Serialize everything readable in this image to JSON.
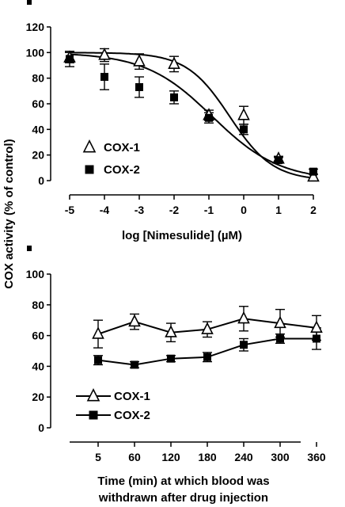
{
  "shared_ylabel": "COX activity (% of control)",
  "chart_data": [
    {
      "type": "line",
      "xlabel": "log [Nimesulide] (µM)",
      "x": [
        -5,
        -4,
        -3,
        -2,
        -1,
        0,
        1,
        2
      ],
      "xlim": [
        -5,
        2
      ],
      "ylim": [
        0,
        120
      ],
      "yticks": [
        0,
        20,
        40,
        60,
        80,
        100,
        120
      ],
      "xticks": [
        -5,
        -4,
        -3,
        -2,
        -1,
        0,
        1,
        2
      ],
      "legend_position": "lower-left",
      "series": [
        {
          "name": "COX-1",
          "marker": "open-triangle",
          "values": [
            96,
            98,
            93,
            91,
            51,
            51,
            17,
            3
          ],
          "errors": [
            4,
            5,
            6,
            6,
            4,
            7,
            2,
            2
          ]
        },
        {
          "name": "COX-2",
          "marker": "filled-square",
          "values": [
            95,
            81,
            73,
            65,
            49,
            40,
            16,
            7
          ],
          "errors": [
            6,
            10,
            8,
            5,
            4,
            4,
            2,
            2
          ]
        }
      ],
      "fit_curves": [
        {
          "series": "COX-1",
          "top": 100,
          "bottom": 0,
          "log_ic50": -0.4,
          "hill": 0.7
        },
        {
          "series": "COX-2",
          "top": 100,
          "bottom": 0,
          "log_ic50": -0.9,
          "hill": 0.45
        }
      ]
    },
    {
      "type": "line",
      "xlabel": "Time (min) at which blood was withdrawn after drug injection",
      "xlabel_lines": [
        "Time (min) at which blood was",
        "withdrawn after drug injection"
      ],
      "categories": [
        "5",
        "60",
        "120",
        "180",
        "240",
        "300",
        "360"
      ],
      "ylim": [
        0,
        100
      ],
      "yticks": [
        0,
        20,
        40,
        60,
        80,
        100
      ],
      "legend_position": "lower-left",
      "series": [
        {
          "name": "COX-1",
          "marker": "open-triangle",
          "values": [
            61,
            69,
            62,
            64,
            71,
            68,
            65
          ],
          "errors": [
            9,
            5,
            6,
            5,
            8,
            9,
            8
          ]
        },
        {
          "name": "COX-2",
          "marker": "filled-square",
          "values": [
            44,
            41,
            45,
            46,
            54,
            58,
            58
          ],
          "errors": [
            3,
            2,
            2,
            3,
            4,
            3,
            7
          ]
        }
      ]
    }
  ]
}
